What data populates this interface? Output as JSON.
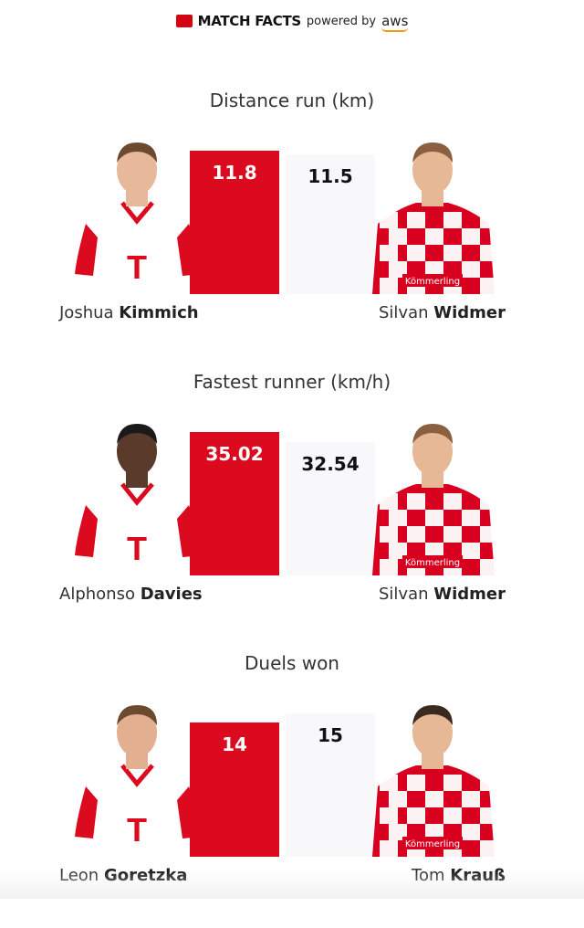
{
  "header": {
    "brand": "MATCH FACTS",
    "powered": "powered by",
    "sponsor": "aws"
  },
  "colors": {
    "home": "#dc0a1e",
    "away_bar": "#f8f8fa"
  },
  "stats": [
    {
      "title": "Distance run (km)",
      "home": {
        "value": "11.8",
        "num": 11.8,
        "first": "Joshua",
        "last": "Kimmich"
      },
      "away": {
        "value": "11.5",
        "num": 11.5,
        "first": "Silvan",
        "last": "Widmer"
      }
    },
    {
      "title": "Fastest runner (km/h)",
      "home": {
        "value": "35.02",
        "num": 35.02,
        "first": "Alphonso",
        "last": "Davies"
      },
      "away": {
        "value": "32.54",
        "num": 32.54,
        "first": "Silvan",
        "last": "Widmer"
      }
    },
    {
      "title": "Duels won",
      "home": {
        "value": "14",
        "num": 14,
        "first": "Leon",
        "last": "Goretzka"
      },
      "away": {
        "value": "15",
        "num": 15,
        "first": "Tom",
        "last": "Krauß"
      }
    }
  ]
}
